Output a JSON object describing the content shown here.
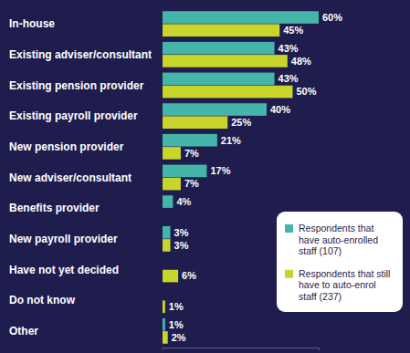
{
  "chart_data": {
    "type": "bar",
    "orientation": "horizontal",
    "categories": [
      "In-house",
      "Existing adviser/consultant",
      "Existing pension provider",
      "Existing payroll provider",
      "New pension provider",
      "New adviser/consultant",
      "Benefits provider",
      "New payroll provider",
      "Have not yet decided",
      "Do not know",
      "Other"
    ],
    "series": [
      {
        "name": "Respondents that have auto-enrolled staff (107)",
        "color": "#45b5aa",
        "values": [
          60,
          43,
          43,
          40,
          21,
          17,
          4,
          3,
          null,
          null,
          1
        ],
        "value_labels": [
          "60%",
          "43%",
          "43%",
          "40%",
          "21%",
          "17%",
          "4%",
          "3%",
          null,
          null,
          "1%"
        ]
      },
      {
        "name": "Respondents that still have to auto-enrol staff (237)",
        "color": "#c8d62b",
        "values": [
          45,
          48,
          50,
          25,
          7,
          7,
          null,
          3,
          6,
          1,
          2
        ],
        "value_labels": [
          "45%",
          "48%",
          "50%",
          "25%",
          "7%",
          "7%",
          null,
          "3%",
          "6%",
          "1%",
          "2%"
        ]
      }
    ],
    "xlim": [
      0,
      60
    ],
    "xticks": [
      0,
      60
    ],
    "tick_labels": false,
    "grid": false,
    "data_labels": true,
    "legend": "bottom-right"
  }
}
